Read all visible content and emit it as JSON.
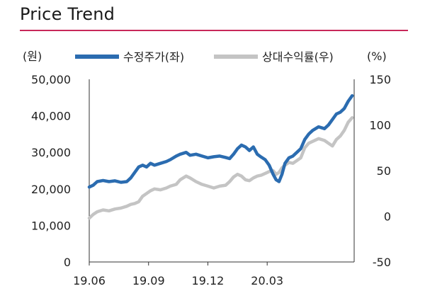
{
  "chart_data": {
    "type": "line",
    "title": "Price Trend",
    "left_unit": "(원)",
    "right_unit": "(%)",
    "y_left_range": [
      0,
      50000
    ],
    "y_right_range": [
      -50,
      150
    ],
    "y_left_ticks": [
      "0",
      "10,000",
      "20,000",
      "30,000",
      "40,000",
      "50,000"
    ],
    "y_right_ticks": [
      "-50",
      "0",
      "50",
      "100",
      "150"
    ],
    "x_ticks": [
      "19.06",
      "19.09",
      "19.12",
      "20.03"
    ],
    "x_range_months": [
      0,
      13.4
    ],
    "legend": [
      "수정주가(좌)",
      "상대수익률(우)"
    ],
    "series": [
      {
        "name": "수정주가(좌)",
        "axis": "left",
        "color": "#2b6cb0",
        "points": [
          [
            0.0,
            20500
          ],
          [
            0.2,
            21000
          ],
          [
            0.4,
            22000
          ],
          [
            0.7,
            22300
          ],
          [
            1.0,
            22000
          ],
          [
            1.3,
            22200
          ],
          [
            1.6,
            21800
          ],
          [
            1.9,
            22000
          ],
          [
            2.1,
            23000
          ],
          [
            2.3,
            24500
          ],
          [
            2.5,
            26000
          ],
          [
            2.7,
            26500
          ],
          [
            2.9,
            26000
          ],
          [
            3.1,
            27000
          ],
          [
            3.3,
            26500
          ],
          [
            3.6,
            27000
          ],
          [
            3.9,
            27500
          ],
          [
            4.1,
            28000
          ],
          [
            4.4,
            29000
          ],
          [
            4.6,
            29500
          ],
          [
            4.9,
            30000
          ],
          [
            5.1,
            29200
          ],
          [
            5.4,
            29500
          ],
          [
            5.7,
            29000
          ],
          [
            6.0,
            28500
          ],
          [
            6.3,
            28800
          ],
          [
            6.6,
            29000
          ],
          [
            6.9,
            28600
          ],
          [
            7.1,
            28300
          ],
          [
            7.3,
            29500
          ],
          [
            7.5,
            31000
          ],
          [
            7.7,
            32000
          ],
          [
            7.9,
            31500
          ],
          [
            8.1,
            30500
          ],
          [
            8.3,
            31500
          ],
          [
            8.5,
            29500
          ],
          [
            8.7,
            28700
          ],
          [
            8.9,
            28000
          ],
          [
            9.1,
            26500
          ],
          [
            9.3,
            24000
          ],
          [
            9.45,
            22500
          ],
          [
            9.6,
            22000
          ],
          [
            9.75,
            24000
          ],
          [
            9.9,
            27000
          ],
          [
            10.1,
            28500
          ],
          [
            10.3,
            29000
          ],
          [
            10.5,
            30000
          ],
          [
            10.7,
            31000
          ],
          [
            10.9,
            33500
          ],
          [
            11.1,
            35000
          ],
          [
            11.3,
            36000
          ],
          [
            11.6,
            37000
          ],
          [
            11.9,
            36500
          ],
          [
            12.1,
            37500
          ],
          [
            12.3,
            39000
          ],
          [
            12.5,
            40500
          ],
          [
            12.7,
            41000
          ],
          [
            12.9,
            42000
          ],
          [
            13.1,
            44000
          ],
          [
            13.3,
            45500
          ]
        ]
      },
      {
        "name": "상대수익률(우)",
        "axis": "right",
        "color": "#c4c4c4",
        "points": [
          [
            0.0,
            -2
          ],
          [
            0.2,
            2
          ],
          [
            0.4,
            5
          ],
          [
            0.7,
            7
          ],
          [
            1.0,
            6
          ],
          [
            1.3,
            8
          ],
          [
            1.6,
            9
          ],
          [
            1.9,
            11
          ],
          [
            2.1,
            13
          ],
          [
            2.3,
            14
          ],
          [
            2.5,
            16
          ],
          [
            2.7,
            22
          ],
          [
            2.9,
            25
          ],
          [
            3.1,
            28
          ],
          [
            3.3,
            30
          ],
          [
            3.6,
            29
          ],
          [
            3.9,
            31
          ],
          [
            4.1,
            33
          ],
          [
            4.4,
            35
          ],
          [
            4.6,
            40
          ],
          [
            4.9,
            44
          ],
          [
            5.1,
            42
          ],
          [
            5.4,
            38
          ],
          [
            5.7,
            35
          ],
          [
            6.0,
            33
          ],
          [
            6.3,
            31
          ],
          [
            6.6,
            33
          ],
          [
            6.9,
            34
          ],
          [
            7.1,
            38
          ],
          [
            7.3,
            43
          ],
          [
            7.5,
            46
          ],
          [
            7.7,
            44
          ],
          [
            7.9,
            40
          ],
          [
            8.1,
            39
          ],
          [
            8.3,
            42
          ],
          [
            8.5,
            44
          ],
          [
            8.7,
            45
          ],
          [
            8.9,
            47
          ],
          [
            9.1,
            49
          ],
          [
            9.3,
            50
          ],
          [
            9.45,
            46
          ],
          [
            9.6,
            48
          ],
          [
            9.75,
            53
          ],
          [
            9.9,
            56
          ],
          [
            10.1,
            59
          ],
          [
            10.3,
            58
          ],
          [
            10.5,
            61
          ],
          [
            10.7,
            64
          ],
          [
            10.9,
            75
          ],
          [
            11.1,
            80
          ],
          [
            11.3,
            82
          ],
          [
            11.6,
            85
          ],
          [
            11.9,
            83
          ],
          [
            12.1,
            80
          ],
          [
            12.3,
            77
          ],
          [
            12.5,
            84
          ],
          [
            12.7,
            88
          ],
          [
            12.9,
            94
          ],
          [
            13.1,
            103
          ],
          [
            13.3,
            108
          ]
        ]
      }
    ]
  }
}
